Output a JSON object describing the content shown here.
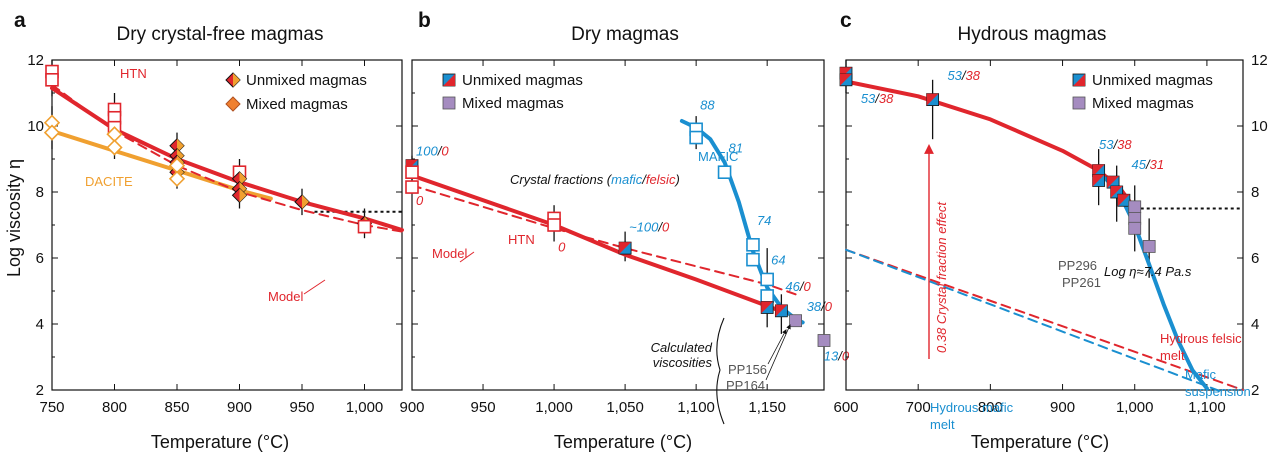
{
  "colors": {
    "red": "#e0262d",
    "blue": "#1a8fd0",
    "orange": "#f0a030",
    "purple": "#a58cc0",
    "dark": "#111111",
    "gray": "#666666"
  },
  "ylabel": "Log viscosity η",
  "xlabel": "Temperature (°C)",
  "chart_data": [
    {
      "id": "a",
      "type": "scatter",
      "letter": "a",
      "title": "Dry crystal-free magmas",
      "xlabel": "Temperature (°C)",
      "ylabel": "Log viscosity η",
      "xlim": [
        750,
        1030
      ],
      "ylim": [
        2,
        12
      ],
      "xticks": [
        750,
        800,
        850,
        900,
        950,
        1000
      ],
      "xtick_labels": [
        "750",
        "800",
        "850",
        "900",
        "950",
        "1,000"
      ],
      "yticks": [
        2,
        4,
        6,
        8,
        10,
        12
      ],
      "legend": {
        "items": [
          {
            "label": "Unmixed magmas",
            "marker": "diamond-dark"
          },
          {
            "label": "Mixed magmas",
            "marker": "diamond-light"
          }
        ],
        "position": "top-right"
      },
      "curves": [
        {
          "name": "HTN",
          "color": "red",
          "style": "solid",
          "points": [
            [
              750,
              11.15
            ],
            [
              800,
              9.9
            ],
            [
              850,
              9.0
            ],
            [
              900,
              8.3
            ],
            [
              950,
              7.7
            ],
            [
              1000,
              7.2
            ],
            [
              1030,
              6.85
            ]
          ]
        },
        {
          "name": "DACITE",
          "color": "orange",
          "style": "solid",
          "points": [
            [
              750,
              9.85
            ],
            [
              800,
              9.25
            ],
            [
              850,
              8.65
            ],
            [
              900,
              8.05
            ],
            [
              925,
              7.8
            ]
          ]
        },
        {
          "name": "Model",
          "color": "red",
          "style": "dashed",
          "points": [
            [
              750,
              11.25
            ],
            [
              800,
              9.85
            ],
            [
              850,
              8.8
            ],
            [
              900,
              8.0
            ],
            [
              950,
              7.45
            ],
            [
              1000,
              7.0
            ],
            [
              1030,
              6.8
            ]
          ]
        }
      ],
      "points": [
        {
          "x": 750,
          "y": 11.65,
          "marker": "square-open",
          "color": "red"
        },
        {
          "x": 750,
          "y": 11.4,
          "marker": "square-open",
          "color": "red"
        },
        {
          "x": 750,
          "y": 10.1,
          "marker": "diamond-open",
          "color": "orange"
        },
        {
          "x": 750,
          "y": 9.8,
          "marker": "diamond-open",
          "color": "orange"
        },
        {
          "x": 800,
          "y": 10.5,
          "marker": "square-open",
          "color": "red"
        },
        {
          "x": 800,
          "y": 10.25,
          "marker": "square-open",
          "color": "red"
        },
        {
          "x": 800,
          "y": 9.95,
          "marker": "square-open",
          "color": "red"
        },
        {
          "x": 800,
          "y": 9.75,
          "marker": "diamond-open",
          "color": "orange"
        },
        {
          "x": 800,
          "y": 9.35,
          "marker": "diamond-open",
          "color": "orange"
        },
        {
          "x": 850,
          "y": 9.4,
          "marker": "diamond-dark",
          "color": "orange"
        },
        {
          "x": 850,
          "y": 9.1,
          "marker": "diamond-dark",
          "color": "orange"
        },
        {
          "x": 850,
          "y": 8.9,
          "marker": "diamond-dark",
          "color": "orange"
        },
        {
          "x": 850,
          "y": 8.6,
          "marker": "diamond-dark",
          "color": "orange"
        },
        {
          "x": 850,
          "y": 8.8,
          "marker": "diamond-open",
          "color": "orange"
        },
        {
          "x": 850,
          "y": 8.4,
          "marker": "diamond-open",
          "color": "orange"
        },
        {
          "x": 900,
          "y": 8.6,
          "marker": "square-open",
          "color": "red"
        },
        {
          "x": 900,
          "y": 8.4,
          "marker": "diamond-dark",
          "color": "orange"
        },
        {
          "x": 900,
          "y": 8.1,
          "marker": "diamond-dark",
          "color": "orange"
        },
        {
          "x": 900,
          "y": 7.9,
          "marker": "diamond-dark",
          "color": "orange"
        },
        {
          "x": 950,
          "y": 7.7,
          "marker": "diamond-dark",
          "color": "orange"
        },
        {
          "x": 1000,
          "y": 7.05,
          "marker": "diamond-dark",
          "color": "orange"
        },
        {
          "x": 1000,
          "y": 6.95,
          "marker": "square-open",
          "color": "red"
        }
      ],
      "error_bars": [
        [
          750,
          10.9,
          12.0
        ],
        [
          750,
          9.3,
          10.6
        ],
        [
          800,
          9.0,
          11.0
        ],
        [
          850,
          8.1,
          9.8
        ],
        [
          900,
          7.5,
          9.0
        ],
        [
          950,
          7.3,
          8.1
        ],
        [
          1000,
          6.6,
          7.5
        ]
      ],
      "reference_line": {
        "y": 7.4,
        "x_range": [
          960,
          1030
        ],
        "style": "dotted"
      },
      "annotations": [
        {
          "text": "HTN",
          "color": "red"
        },
        {
          "text": "DACITE",
          "color": "orange"
        },
        {
          "text": "Model",
          "color": "red"
        }
      ]
    },
    {
      "id": "b",
      "type": "scatter",
      "letter": "b",
      "title": "Dry magmas",
      "xlabel": "Temperature (°C)",
      "xlim": [
        900,
        1190
      ],
      "ylim": [
        2,
        12
      ],
      "xticks": [
        900,
        950,
        1000,
        1050,
        1100,
        1150
      ],
      "xtick_labels": [
        "900",
        "950",
        "1,000",
        "1,050",
        "1,100",
        "1,150"
      ],
      "legend": {
        "items": [
          {
            "label": "Unmixed magmas",
            "marker": "square-split"
          },
          {
            "label": "Mixed magmas",
            "marker": "square-purple"
          }
        ],
        "position": "top-left"
      },
      "curves": [
        {
          "name": "HTN",
          "color": "red",
          "style": "solid",
          "points": [
            [
              900,
              8.5
            ],
            [
              1000,
              7.0
            ],
            [
              1050,
              6.1
            ],
            [
              1100,
              5.35
            ],
            [
              1150,
              4.55
            ],
            [
              1162,
              4.35
            ]
          ]
        },
        {
          "name": "Model",
          "color": "red",
          "style": "dashed",
          "points": [
            [
              900,
              8.2
            ],
            [
              1000,
              6.9
            ],
            [
              1050,
              6.3
            ],
            [
              1100,
              5.75
            ],
            [
              1150,
              5.2
            ],
            [
              1170,
              4.9
            ]
          ]
        },
        {
          "name": "MAFIC",
          "color": "blue",
          "style": "solid",
          "points": [
            [
              1090,
              10.15
            ],
            [
              1100,
              9.95
            ],
            [
              1110,
              9.6
            ],
            [
              1120,
              8.9
            ],
            [
              1130,
              7.7
            ],
            [
              1140,
              6.2
            ],
            [
              1150,
              5.1
            ],
            [
              1160,
              4.5
            ],
            [
              1170,
              4.15
            ],
            [
              1175,
              4.05
            ]
          ]
        }
      ],
      "points": [
        {
          "x": 900,
          "y": 8.8,
          "marker": "square-split"
        },
        {
          "x": 900,
          "y": 8.6,
          "marker": "square-open",
          "color": "red"
        },
        {
          "x": 900,
          "y": 8.15,
          "marker": "square-open",
          "color": "red"
        },
        {
          "x": 1000,
          "y": 7.2,
          "marker": "square-open",
          "color": "red"
        },
        {
          "x": 1000,
          "y": 7.0,
          "marker": "square-open",
          "color": "red"
        },
        {
          "x": 1050,
          "y": 6.3,
          "marker": "square-split"
        },
        {
          "x": 1100,
          "y": 9.9,
          "marker": "square-open",
          "color": "blue"
        },
        {
          "x": 1100,
          "y": 9.65,
          "marker": "square-open",
          "color": "blue"
        },
        {
          "x": 1120,
          "y": 8.6,
          "marker": "square-open",
          "color": "blue"
        },
        {
          "x": 1140,
          "y": 6.4,
          "marker": "square-open",
          "color": "blue"
        },
        {
          "x": 1140,
          "y": 5.95,
          "marker": "square-open",
          "color": "blue"
        },
        {
          "x": 1150,
          "y": 5.35,
          "marker": "square-open",
          "color": "blue"
        },
        {
          "x": 1150,
          "y": 4.85,
          "marker": "square-open",
          "color": "blue"
        },
        {
          "x": 1150,
          "y": 4.5,
          "marker": "square-split"
        },
        {
          "x": 1160,
          "y": 4.4,
          "marker": "square-split"
        },
        {
          "x": 1170,
          "y": 4.1,
          "marker": "square-purple"
        },
        {
          "x": 1190,
          "y": 3.5,
          "marker": "square-purple"
        }
      ],
      "error_bars": [
        [
          900,
          8.3,
          9.1
        ],
        [
          1000,
          6.5,
          7.6
        ],
        [
          1050,
          5.9,
          6.8
        ],
        [
          1100,
          9.3,
          10.3
        ],
        [
          1150,
          3.9,
          6.3
        ],
        [
          1160,
          3.7,
          4.9
        ]
      ],
      "crystal_fraction_labels": [
        {
          "text_a": "100",
          "text_b": "0",
          "x": 900,
          "y": 9.1
        },
        {
          "text_a": "0",
          "text_b": "",
          "x": 900,
          "y": 7.6,
          "red_only": true
        },
        {
          "text_a": "0",
          "text_b": "",
          "x": 1000,
          "y": 6.2,
          "red_only": true
        },
        {
          "text_a": "~100",
          "text_b": "0",
          "x": 1050,
          "y": 6.8
        },
        {
          "text_a": "88",
          "text_b": "",
          "x": 1100,
          "y": 10.5,
          "blue_only": true
        },
        {
          "text_a": "81",
          "text_b": "",
          "x": 1120,
          "y": 9.2,
          "blue_only": true
        },
        {
          "text_a": "74",
          "text_b": "",
          "x": 1140,
          "y": 7.0,
          "blue_only": true
        },
        {
          "text_a": "64",
          "text_b": "",
          "x": 1150,
          "y": 5.8,
          "blue_only": true
        },
        {
          "text_a": "46",
          "text_b": "0",
          "x": 1160,
          "y": 5.0
        },
        {
          "text_a": "38",
          "text_b": "0",
          "x": 1175,
          "y": 4.4
        },
        {
          "text_a": "13",
          "text_b": "0",
          "x": 1187,
          "y": 2.9
        }
      ],
      "annotations": [
        {
          "text": "Crystal fractions (mafic/felsic)"
        },
        {
          "text": "HTN",
          "color": "red"
        },
        {
          "text": "MAFIC",
          "color": "blue"
        },
        {
          "text": "Model",
          "color": "red"
        },
        {
          "text": "Calculated viscosities"
        },
        {
          "text": "PP156"
        },
        {
          "text": "PP164"
        }
      ]
    },
    {
      "id": "c",
      "type": "scatter",
      "letter": "c",
      "title": "Hydrous magmas",
      "xlabel": "Temperature (°C)",
      "xlim": [
        600,
        1150
      ],
      "ylim": [
        2,
        12
      ],
      "xticks": [
        600,
        700,
        800,
        900,
        1000,
        1100
      ],
      "xtick_labels": [
        "600",
        "700",
        "800",
        "900",
        "1,000",
        "1,100"
      ],
      "legend": {
        "items": [
          {
            "label": "Unmixed magmas",
            "marker": "square-split"
          },
          {
            "label": "Mixed magmas",
            "marker": "square-purple"
          }
        ],
        "position": "top-right"
      },
      "curves": [
        {
          "name": "Hydrous felsic melt (HTN)",
          "color": "red",
          "style": "solid",
          "points": [
            [
              600,
              11.35
            ],
            [
              700,
              10.9
            ],
            [
              800,
              10.2
            ],
            [
              900,
              9.25
            ],
            [
              950,
              8.65
            ],
            [
              980,
              8.1
            ],
            [
              1000,
              7.5
            ]
          ]
        },
        {
          "name": "Hydrous felsic melt",
          "color": "red",
          "style": "dashed",
          "points": [
            [
              600,
              6.25
            ],
            [
              1150,
              2.0
            ]
          ]
        },
        {
          "name": "Hydrous mafic melt",
          "color": "blue",
          "style": "dashed",
          "points": [
            [
              600,
              6.25
            ],
            [
              1120,
              1.95
            ]
          ]
        },
        {
          "name": "Mafic suspension",
          "color": "blue",
          "style": "solid",
          "points": [
            [
              960,
              8.4
            ],
            [
              980,
              7.9
            ],
            [
              1000,
              7.0
            ],
            [
              1020,
              5.8
            ],
            [
              1040,
              4.6
            ],
            [
              1060,
              3.5
            ],
            [
              1080,
              2.6
            ],
            [
              1100,
              2.05
            ]
          ]
        }
      ],
      "points": [
        {
          "x": 600,
          "y": 11.6,
          "marker": "square-split"
        },
        {
          "x": 600,
          "y": 11.4,
          "marker": "square-split"
        },
        {
          "x": 720,
          "y": 10.8,
          "marker": "square-split"
        },
        {
          "x": 950,
          "y": 8.65,
          "marker": "square-split"
        },
        {
          "x": 950,
          "y": 8.35,
          "marker": "square-split"
        },
        {
          "x": 970,
          "y": 8.3,
          "marker": "square-split"
        },
        {
          "x": 975,
          "y": 8.0,
          "marker": "square-split"
        },
        {
          "x": 985,
          "y": 7.75,
          "marker": "square-split"
        },
        {
          "x": 1000,
          "y": 7.55,
          "marker": "square-purple"
        },
        {
          "x": 1000,
          "y": 7.2,
          "marker": "square-purple"
        },
        {
          "x": 1000,
          "y": 6.9,
          "marker": "square-purple"
        },
        {
          "x": 1020,
          "y": 6.35,
          "marker": "square-purple"
        }
      ],
      "error_bars": [
        [
          600,
          11.0,
          12.0
        ],
        [
          720,
          9.6,
          11.4
        ],
        [
          950,
          7.6,
          9.3
        ],
        [
          975,
          7.1,
          8.8
        ],
        [
          1000,
          6.2,
          8.2
        ],
        [
          1020,
          5.4,
          7.2
        ]
      ],
      "reference_line": {
        "y": 7.5,
        "x_range": [
          1000,
          1150
        ],
        "style": "dotted",
        "label": "Log η≈7.4 Pa.s"
      },
      "crystal_fraction_labels": [
        {
          "text_a": "53",
          "text_b": "38",
          "x": 615,
          "y": 10.7
        },
        {
          "text_a": "53",
          "text_b": "38",
          "x": 735,
          "y": 11.4
        },
        {
          "text_a": "53",
          "text_b": "38",
          "x": 945,
          "y": 9.3
        },
        {
          "text_a": "45",
          "text_b": "31",
          "x": 990,
          "y": 8.7
        }
      ],
      "annotations": [
        {
          "text": "0.38 Crystal fraction effect",
          "color": "red"
        },
        {
          "text": "PP296"
        },
        {
          "text": "PP261"
        },
        {
          "text": "Hydrous felsic melt",
          "color": "red"
        },
        {
          "text": "Hydrous mafic melt",
          "color": "blue"
        },
        {
          "text": "Mafic suspension",
          "color": "blue"
        }
      ]
    }
  ]
}
